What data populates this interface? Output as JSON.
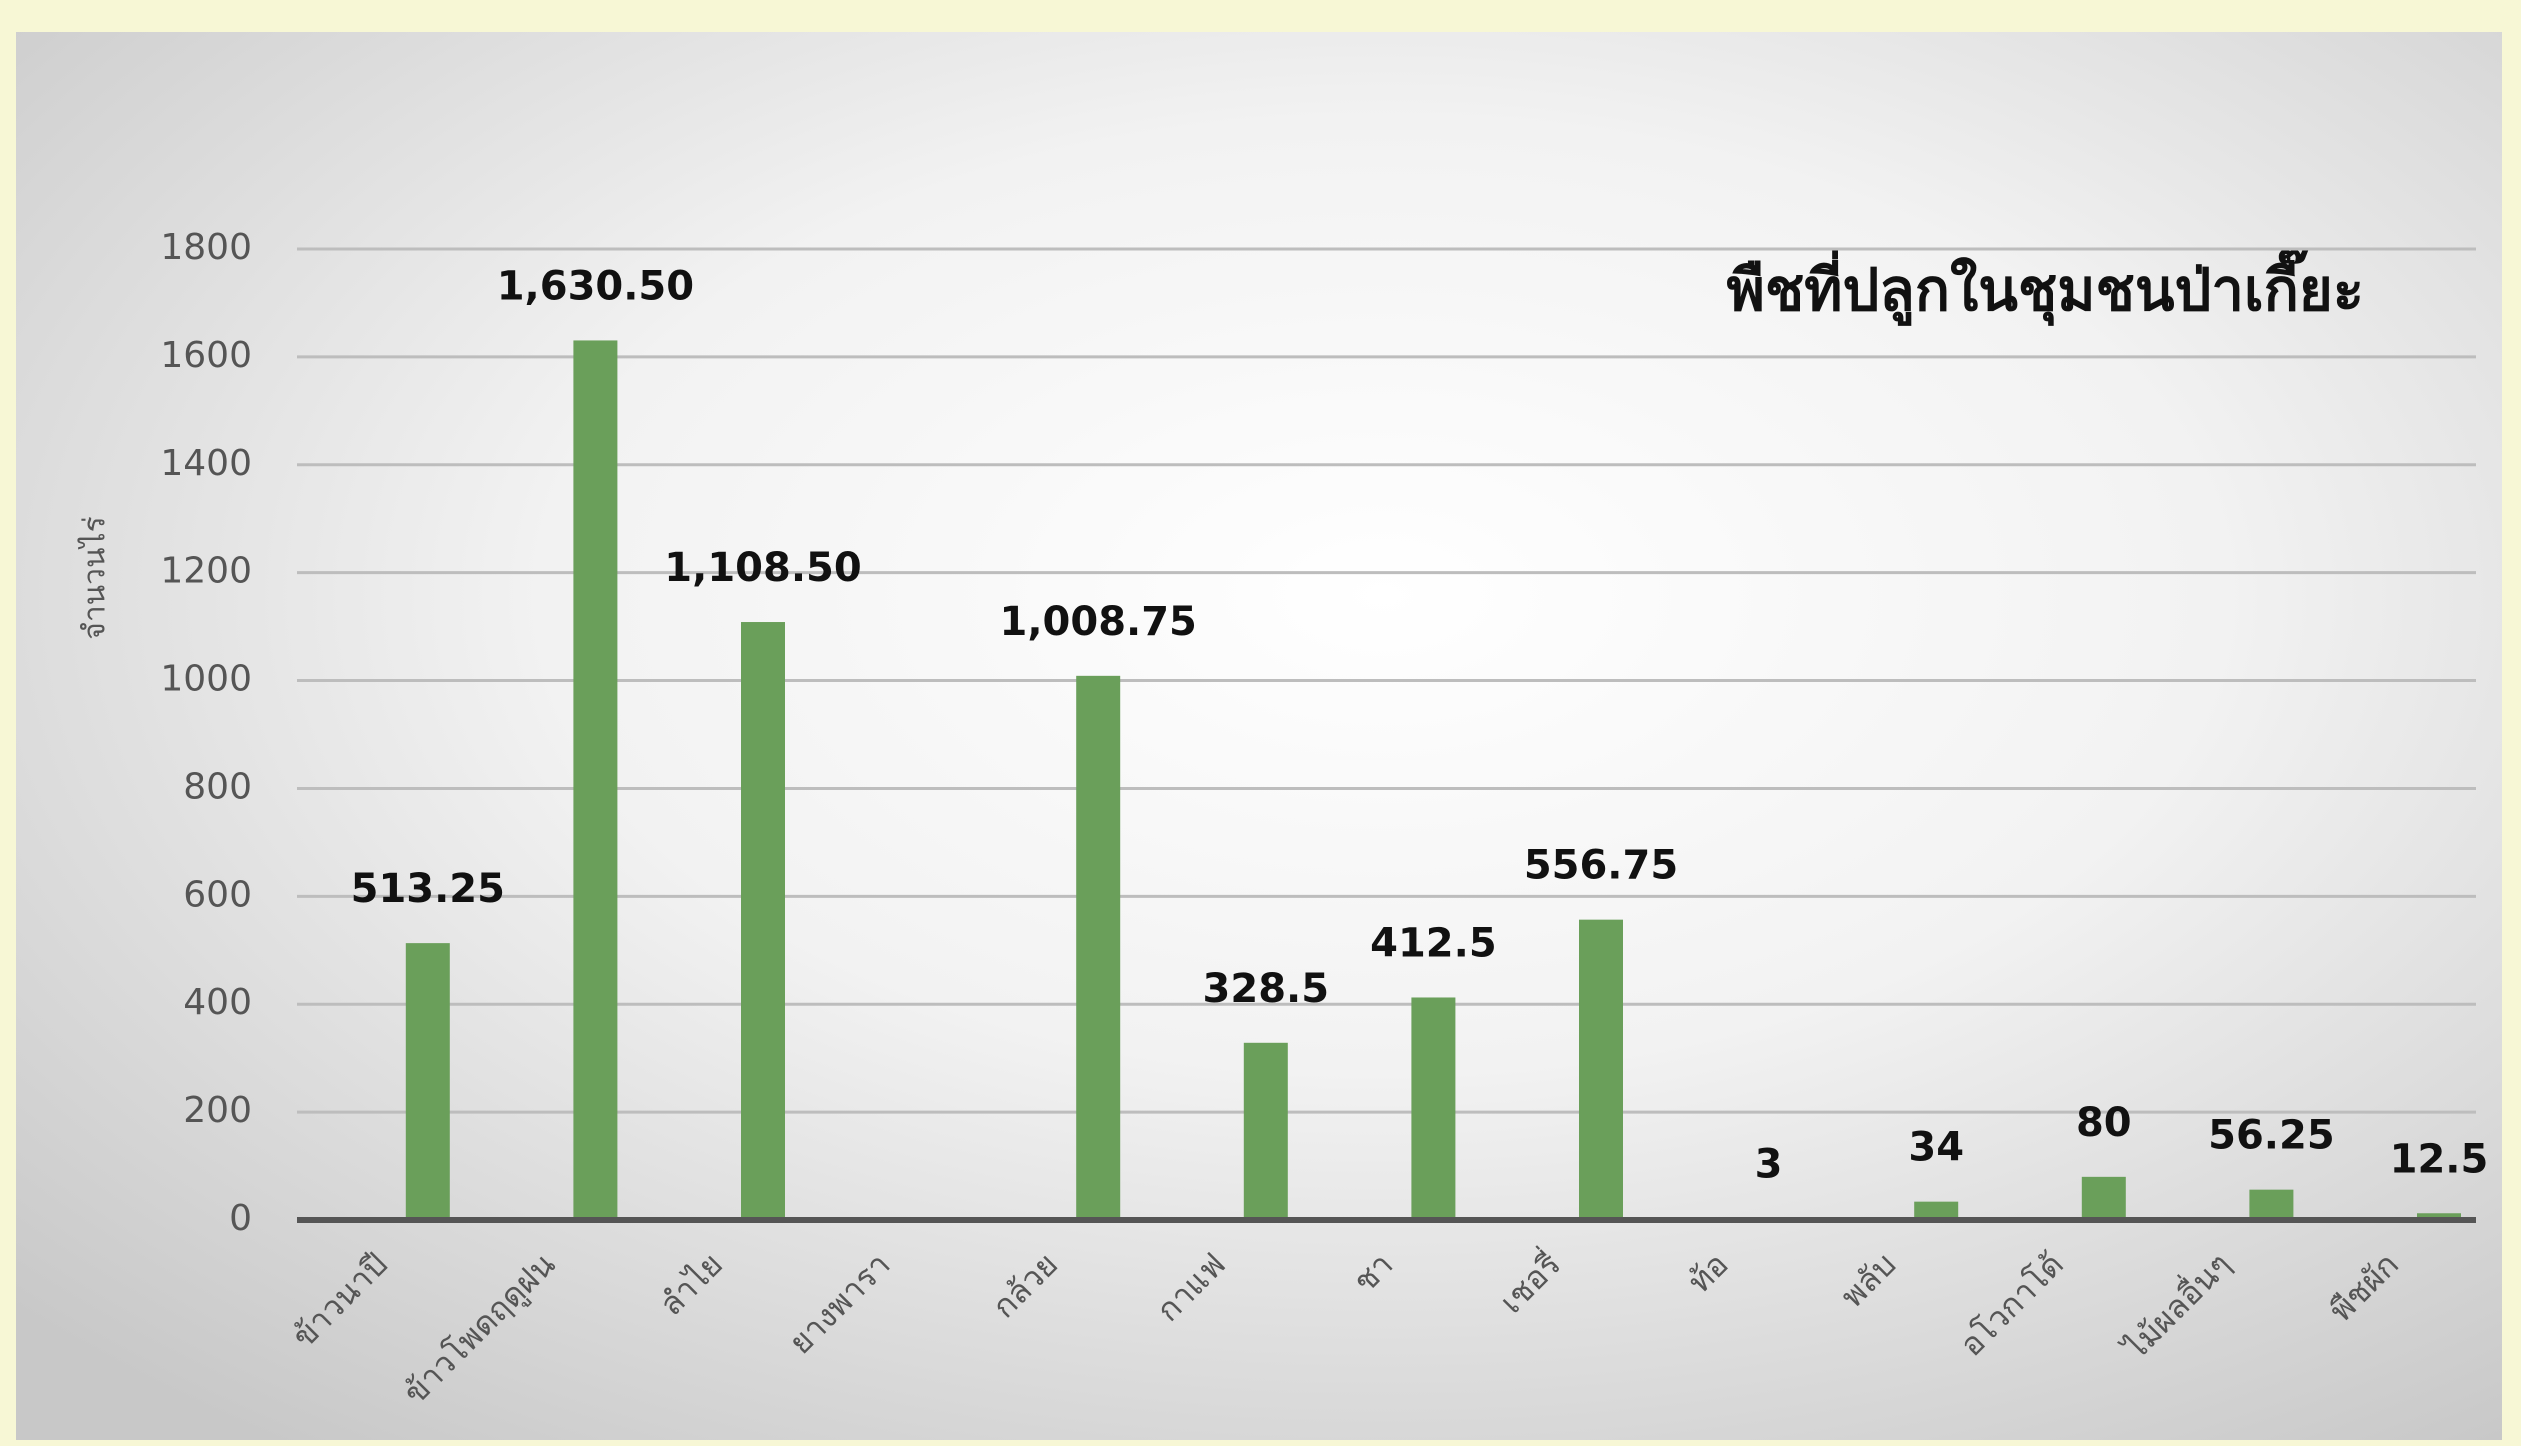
{
  "chart_data": {
    "type": "bar",
    "title": "พืชที่ปลูกในชุมชนป่าเกี๊ยะ",
    "y_label": "จำนวนไร่",
    "categories": [
      "ข้าวนาปี",
      "ข้าวโพดฤดูฝน",
      "ลำไย",
      "ยางพารา",
      "กล้วย",
      "กาแฟ",
      "ชา",
      "เชอรี่",
      "ท้อ",
      "พลับ",
      "อโวกาโด้",
      "ไม้ผลอื่นๆ",
      "พืชผัก"
    ],
    "values": [
      513.25,
      1630.5,
      1108.5,
      null,
      1008.75,
      328.5,
      412.5,
      556.75,
      3,
      34,
      80,
      56.25,
      12.5
    ],
    "value_labels": [
      "513.25",
      "1,630.50",
      "1,108.50",
      null,
      "1,008.75",
      "328.5",
      "412.5",
      "556.75",
      "3",
      "34",
      "80",
      "56.25",
      "12.5"
    ],
    "color": "#6a9f5a",
    "ylim": [
      0,
      1800
    ],
    "yticks": [
      0,
      200,
      400,
      600,
      800,
      1000,
      1200,
      1400,
      1600,
      1800
    ],
    "grid": true
  }
}
